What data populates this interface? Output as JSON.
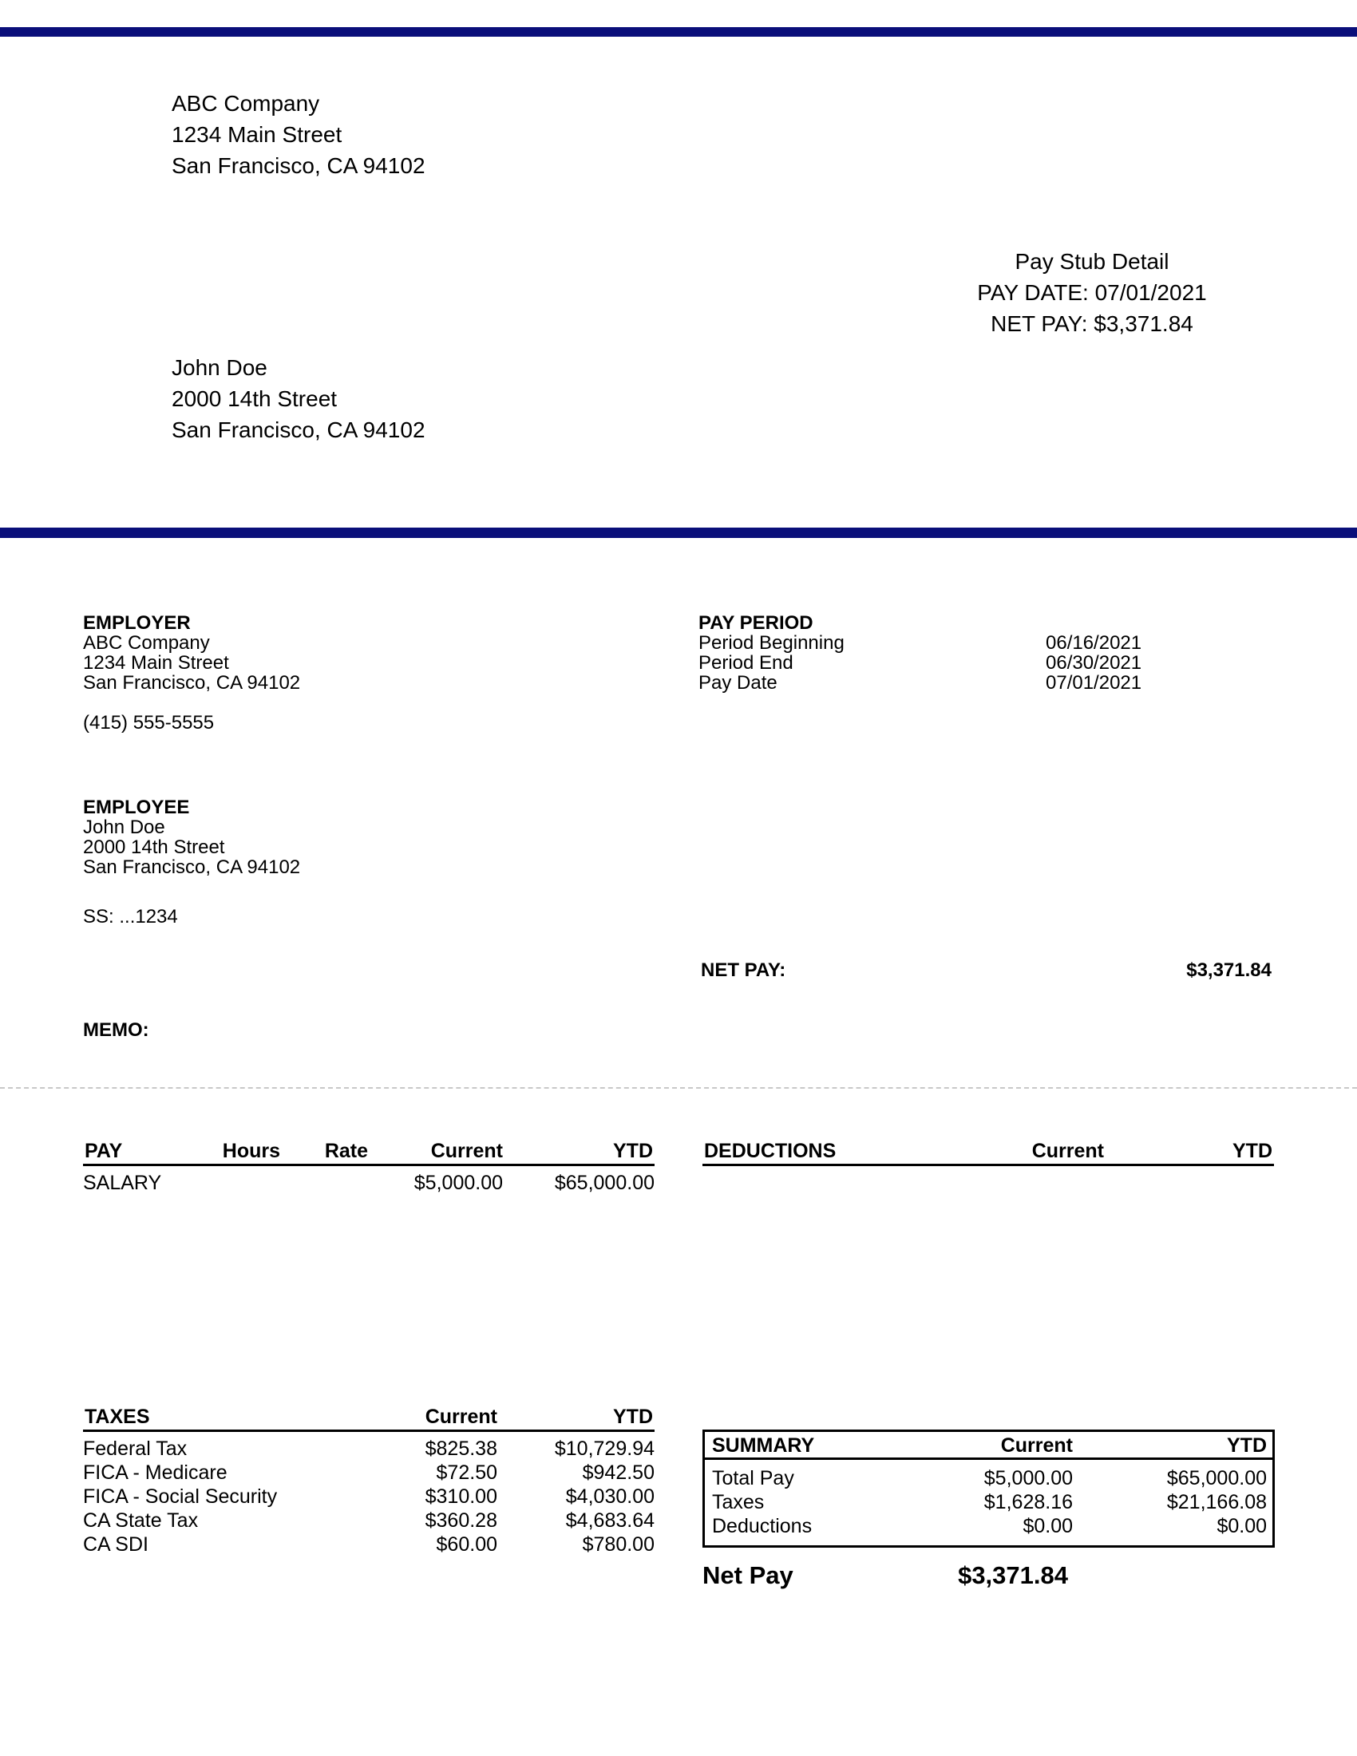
{
  "header": {
    "company": {
      "name": "ABC Company",
      "street": "1234 Main Street",
      "city": "San Francisco, CA 94102"
    },
    "stub": {
      "title": "Pay Stub Detail",
      "pay_date": "PAY DATE: 07/01/2021",
      "net_pay": "NET PAY: $3,371.84"
    },
    "recipient": {
      "name": "John Doe",
      "street": "2000 14th Street",
      "city": "San Francisco, CA 94102"
    },
    "bar_color": "#0a0f7a"
  },
  "employer": {
    "label": "EMPLOYER",
    "name": "ABC Company",
    "street": "1234 Main Street",
    "city": "San Francisco, CA 94102",
    "phone": "(415) 555-5555"
  },
  "pay_period": {
    "label": "PAY PERIOD",
    "rows": [
      {
        "label": "Period Beginning",
        "value": "06/16/2021"
      },
      {
        "label": "Period End",
        "value": "06/30/2021"
      },
      {
        "label": "Pay Date",
        "value": "07/01/2021"
      }
    ]
  },
  "employee": {
    "label": "EMPLOYEE",
    "name": "John Doe",
    "street": "2000 14th Street",
    "city": "San Francisco, CA 94102",
    "ss": "SS: ...1234"
  },
  "net_pay": {
    "label": "NET PAY:",
    "value": "$3,371.84"
  },
  "memo": {
    "label": "MEMO:"
  },
  "pay": {
    "headers": [
      "PAY",
      "Hours",
      "Rate",
      "Current",
      "YTD"
    ],
    "rows": [
      {
        "name": "SALARY",
        "hours": "",
        "rate": "",
        "current": "$5,000.00",
        "ytd": "$65,000.00"
      }
    ]
  },
  "deductions": {
    "headers": [
      "DEDUCTIONS",
      "Current",
      "YTD"
    ],
    "rows": []
  },
  "taxes": {
    "headers": [
      "TAXES",
      "Current",
      "YTD"
    ],
    "rows": [
      {
        "name": "Federal Tax",
        "current": "$825.38",
        "ytd": "$10,729.94"
      },
      {
        "name": "FICA - Medicare",
        "current": "$72.50",
        "ytd": "$942.50"
      },
      {
        "name": "FICA - Social Security",
        "current": "$310.00",
        "ytd": "$4,030.00"
      },
      {
        "name": "CA State Tax",
        "current": "$360.28",
        "ytd": "$4,683.64"
      },
      {
        "name": "CA SDI",
        "current": "$60.00",
        "ytd": "$780.00"
      }
    ]
  },
  "summary": {
    "headers": [
      "SUMMARY",
      "Current",
      "YTD"
    ],
    "rows": [
      {
        "name": "Total Pay",
        "current": "$5,000.00",
        "ytd": "$65,000.00"
      },
      {
        "name": "Taxes",
        "current": "$1,628.16",
        "ytd": "$21,166.08"
      },
      {
        "name": "Deductions",
        "current": "$0.00",
        "ytd": "$0.00"
      }
    ],
    "net_label": "Net Pay",
    "net_value": "$3,371.84"
  }
}
